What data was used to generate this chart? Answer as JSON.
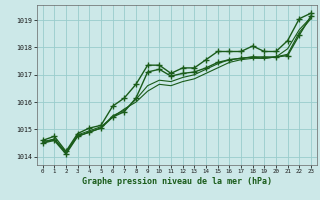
{
  "background_color": "#cce8e8",
  "grid_color": "#99cccc",
  "line_color": "#1a5c1a",
  "marker_color": "#1a5c1a",
  "xlabel": "Graphe pression niveau de la mer (hPa)",
  "xlim": [
    -0.5,
    23.5
  ],
  "ylim": [
    1013.7,
    1019.55
  ],
  "yticks": [
    1014,
    1015,
    1016,
    1017,
    1018,
    1019
  ],
  "xticks": [
    0,
    1,
    2,
    3,
    4,
    5,
    6,
    7,
    8,
    9,
    10,
    11,
    12,
    13,
    14,
    15,
    16,
    17,
    18,
    19,
    20,
    21,
    22,
    23
  ],
  "series": [
    {
      "y": [
        1014.6,
        1014.75,
        1014.2,
        1014.85,
        1015.05,
        1015.15,
        1015.85,
        1016.15,
        1016.65,
        1017.35,
        1017.35,
        1017.05,
        1017.25,
        1017.25,
        1017.55,
        1017.85,
        1017.85,
        1017.85,
        1018.05,
        1017.85,
        1017.85,
        1018.25,
        1019.05,
        1019.25
      ],
      "marker": "+",
      "lw": 1.0,
      "ms": 4.0,
      "mew": 1.0
    },
    {
      "y": [
        1014.55,
        1014.65,
        1014.15,
        1014.8,
        1014.95,
        1015.1,
        1015.45,
        1015.75,
        1016.0,
        1016.4,
        1016.65,
        1016.6,
        1016.75,
        1016.85,
        1017.05,
        1017.25,
        1017.45,
        1017.55,
        1017.6,
        1017.6,
        1017.65,
        1017.95,
        1018.65,
        1019.1
      ],
      "marker": null,
      "lw": 0.8,
      "ms": 0,
      "mew": 0
    },
    {
      "y": [
        1014.5,
        1014.65,
        1014.15,
        1014.75,
        1014.9,
        1015.05,
        1015.5,
        1015.7,
        1016.1,
        1016.6,
        1016.8,
        1016.75,
        1016.9,
        1017.0,
        1017.2,
        1017.4,
        1017.55,
        1017.6,
        1017.65,
        1017.6,
        1017.65,
        1017.75,
        1018.55,
        1019.05
      ],
      "marker": null,
      "lw": 0.8,
      "ms": 0,
      "mew": 0
    },
    {
      "y": [
        1014.5,
        1014.6,
        1014.1,
        1014.75,
        1014.9,
        1015.05,
        1015.45,
        1015.65,
        1016.15,
        1017.1,
        1017.2,
        1016.95,
        1017.05,
        1017.1,
        1017.25,
        1017.45,
        1017.55,
        1017.6,
        1017.65,
        1017.65,
        1017.65,
        1017.7,
        1018.45,
        1019.15
      ],
      "marker": "+",
      "lw": 1.0,
      "ms": 4.0,
      "mew": 1.0
    }
  ]
}
